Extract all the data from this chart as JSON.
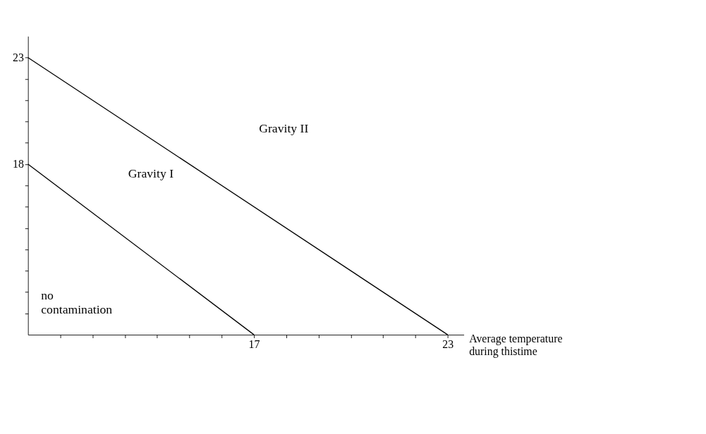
{
  "chart_data": {
    "type": "line",
    "xlabel": "Average temperature during thistime",
    "series": [
      {
        "color": "#000000",
        "x": [
          10,
          17
        ],
        "values": [
          18,
          10
        ]
      },
      {
        "color": "#000000",
        "x": [
          10,
          23
        ],
        "values": [
          23,
          10
        ]
      }
    ],
    "xlim": [
      10,
      23.5
    ],
    "ylim": [
      10,
      24
    ],
    "xticks": [
      {
        "value": 11,
        "label": null
      },
      {
        "value": 12,
        "label": null
      },
      {
        "value": 13,
        "label": null
      },
      {
        "value": 14,
        "label": null
      },
      {
        "value": 15,
        "label": null
      },
      {
        "value": 16,
        "label": null
      },
      17,
      {
        "value": 18,
        "label": null
      },
      {
        "value": 19,
        "label": null
      },
      {
        "value": 20,
        "label": null
      },
      {
        "value": 21,
        "label": null
      },
      {
        "value": 22,
        "label": null
      },
      23
    ],
    "yticks": [
      {
        "value": 11,
        "label": null
      },
      {
        "value": 12,
        "label": null
      },
      {
        "value": 13,
        "label": null
      },
      {
        "value": 14,
        "label": null
      },
      {
        "value": 15,
        "label": null
      },
      {
        "value": 16,
        "label": null
      },
      {
        "value": 17,
        "label": null
      },
      18,
      {
        "value": 19,
        "label": null
      },
      {
        "value": 20,
        "label": null
      },
      {
        "value": 21,
        "label": null
      },
      {
        "value": 22,
        "label": null
      },
      23
    ],
    "annotations": [
      "Gravity II",
      "Gravity I",
      "no contamination"
    ],
    "grid": false,
    "legend": false
  }
}
